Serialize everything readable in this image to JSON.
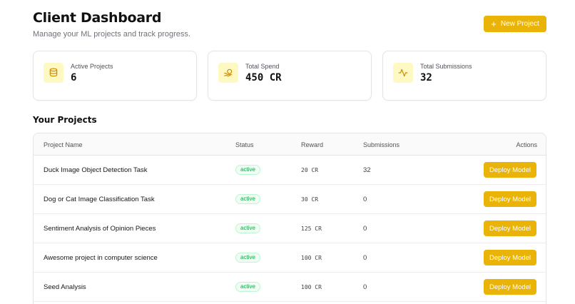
{
  "header": {
    "title": "Client Dashboard",
    "subtitle": "Manage your ML projects and track progress.",
    "new_project_label": "New Project"
  },
  "stats": [
    {
      "label": "Active Projects",
      "value": "6",
      "icon": "database-icon"
    },
    {
      "label": "Total Spend",
      "value": "450 CR",
      "icon": "coins-icon"
    },
    {
      "label": "Total Submissions",
      "value": "32",
      "icon": "activity-icon"
    }
  ],
  "projects_section": {
    "title": "Your Projects",
    "columns": [
      "Project Name",
      "Status",
      "Reward",
      "Submissions",
      "Actions"
    ],
    "rows": [
      {
        "name": "Duck Image Object Detection Task",
        "status": "active",
        "reward": "20 CR",
        "submissions": "32",
        "action": "Deploy Model"
      },
      {
        "name": "Dog or Cat Image Classification Task",
        "status": "active",
        "reward": "30 CR",
        "submissions": "0",
        "action": "Deploy Model"
      },
      {
        "name": "Sentiment Analysis of Opinion Pieces",
        "status": "active",
        "reward": "125 CR",
        "submissions": "0",
        "action": "Deploy Model"
      },
      {
        "name": "Awesome project in computer science",
        "status": "active",
        "reward": "100 CR",
        "submissions": "0",
        "action": "Deploy Model"
      },
      {
        "name": "Seed Analysis",
        "status": "active",
        "reward": "100 CR",
        "submissions": "0",
        "action": "Deploy Model"
      }
    ]
  },
  "colors": {
    "accent": "#eab308",
    "accent_light": "#fef9c3",
    "status_active": "#16a34a"
  }
}
